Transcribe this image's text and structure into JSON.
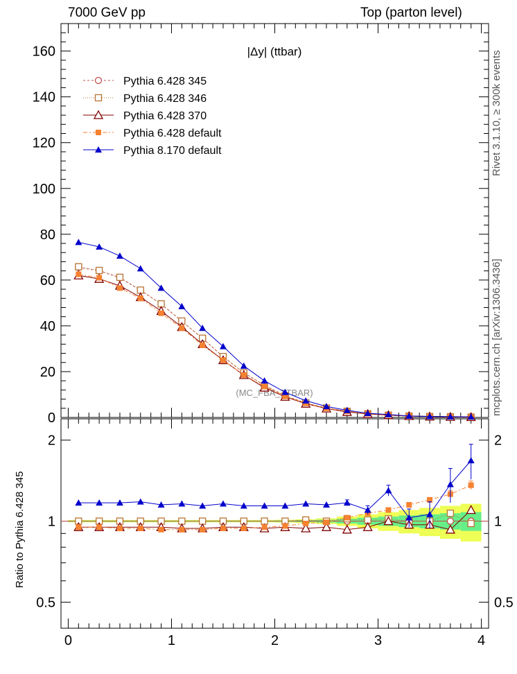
{
  "header": {
    "left": "7000 GeV pp",
    "right": "Top (parton level)"
  },
  "side_labels": {
    "rivet": "Rivet 3.1.10, ≥ 300k events",
    "mcplots": "mcplots.cern.ch [arXiv:1306.3436]"
  },
  "chart_data": [
    {
      "type": "line",
      "title": "|Δy| (ttbar)",
      "watermark": "(MC_FBA_TTBAR)",
      "xlim": [
        -0.07,
        4.07
      ],
      "ylim": [
        0,
        172
      ],
      "yticks": [
        0,
        20,
        40,
        60,
        80,
        100,
        120,
        140,
        160
      ],
      "legend_position": "top-left",
      "x": [
        0.1,
        0.3,
        0.5,
        0.7,
        0.9,
        1.1,
        1.3,
        1.5,
        1.7,
        1.9,
        2.1,
        2.3,
        2.5,
        2.7,
        2.9,
        3.1,
        3.3,
        3.5,
        3.7,
        3.9
      ],
      "series": [
        {
          "name": "Pythia 6.428 345",
          "color": "#c0504d",
          "marker": "circle-open",
          "dash": "3,3",
          "values": [
            65.5,
            64.0,
            61.0,
            55.5,
            49.5,
            42.0,
            34.5,
            26.5,
            19.5,
            14.0,
            9.5,
            6.3,
            4.1,
            2.6,
            1.6,
            1.0,
            0.6,
            0.4,
            0.25,
            0.15
          ]
        },
        {
          "name": "Pythia 6.428 346",
          "color": "#b87333",
          "marker": "square-open",
          "dash": "1,2",
          "values": [
            65.8,
            64.2,
            61.2,
            55.6,
            49.6,
            42.1,
            34.6,
            26.6,
            19.5,
            14.0,
            9.5,
            6.4,
            4.1,
            2.7,
            1.6,
            1.0,
            0.6,
            0.4,
            0.27,
            0.15
          ]
        },
        {
          "name": "Pythia 6.428 370",
          "color": "#800000",
          "marker": "triangle-open",
          "dash": "",
          "values": [
            62.0,
            60.5,
            57.5,
            52.5,
            46.5,
            39.5,
            32.0,
            25.0,
            18.5,
            13.0,
            9.0,
            6.0,
            3.9,
            2.4,
            1.5,
            1.0,
            0.6,
            0.4,
            0.23,
            0.16
          ]
        },
        {
          "name": "Pythia 6.428 default",
          "color": "#f58231",
          "marker": "square-filled",
          "dash": "6,3,2,3",
          "values": [
            62.5,
            61.0,
            56.5,
            52.0,
            45.5,
            39.0,
            31.5,
            25.0,
            18.5,
            13.5,
            9.2,
            6.2,
            4.0,
            2.7,
            1.7,
            1.1,
            0.7,
            0.5,
            0.32,
            0.21
          ]
        },
        {
          "name": "Pythia 8.170 default",
          "color": "#0000cc",
          "marker": "triangle-filled",
          "dash": "",
          "values": [
            76.5,
            74.5,
            70.5,
            65.0,
            56.5,
            48.5,
            39.0,
            31.0,
            22.5,
            16.0,
            11.0,
            7.3,
            4.8,
            3.1,
            1.8,
            1.3,
            0.65,
            0.45,
            0.35,
            0.25
          ]
        }
      ]
    },
    {
      "type": "line",
      "ylabel": "Ratio to Pythia 6.428 345",
      "xlim": [
        -0.07,
        4.07
      ],
      "ylim": [
        0.4,
        2.4
      ],
      "scale": "log",
      "yticks": [
        0.5,
        1,
        2
      ],
      "xticks": [
        0,
        1,
        2,
        3,
        4
      ],
      "x": [
        0.1,
        0.3,
        0.5,
        0.7,
        0.9,
        1.1,
        1.3,
        1.5,
        1.7,
        1.9,
        2.1,
        2.3,
        2.5,
        2.7,
        2.9,
        3.1,
        3.3,
        3.5,
        3.7,
        3.9
      ],
      "band": {
        "inner_color": "#66ee88",
        "outer_color": "#eeff55",
        "inner": [
          0.005,
          0.005,
          0.005,
          0.005,
          0.005,
          0.005,
          0.005,
          0.005,
          0.005,
          0.005,
          0.006,
          0.008,
          0.012,
          0.02,
          0.03,
          0.04,
          0.05,
          0.06,
          0.07,
          0.08
        ],
        "outer": [
          0.01,
          0.01,
          0.01,
          0.01,
          0.01,
          0.01,
          0.01,
          0.01,
          0.01,
          0.01,
          0.012,
          0.016,
          0.024,
          0.04,
          0.06,
          0.08,
          0.1,
          0.12,
          0.14,
          0.16
        ]
      },
      "series": [
        {
          "name": "Pythia 6.428 345",
          "color": "#c0504d",
          "marker": "circle-open",
          "dash": "3,3",
          "values": [
            1,
            1,
            1,
            1,
            1,
            1,
            1,
            1,
            1,
            1,
            1,
            1,
            1,
            1,
            1,
            1,
            1,
            1,
            1,
            1
          ]
        },
        {
          "name": "Pythia 6.428 346",
          "color": "#b87333",
          "marker": "square-open",
          "dash": "1,2",
          "values": [
            1.0,
            1.0,
            1.0,
            1.0,
            1.0,
            1.0,
            1.0,
            1.0,
            1.0,
            1.0,
            1.0,
            1.01,
            1.0,
            1.02,
            1.01,
            1.02,
            1.0,
            1.0,
            1.07,
            0.98
          ]
        },
        {
          "name": "Pythia 6.428 370",
          "color": "#800000",
          "marker": "triangle-open",
          "dash": "",
          "values": [
            0.95,
            0.95,
            0.95,
            0.95,
            0.95,
            0.94,
            0.94,
            0.95,
            0.95,
            0.94,
            0.95,
            0.94,
            0.95,
            0.93,
            0.95,
            1.0,
            0.97,
            0.97,
            0.93,
            1.1
          ]
        },
        {
          "name": "Pythia 6.428 default",
          "color": "#f58231",
          "marker": "square-filled",
          "dash": "6,3,2,3",
          "values": [
            0.95,
            0.95,
            0.94,
            0.94,
            0.93,
            0.93,
            0.93,
            0.94,
            0.94,
            0.95,
            0.96,
            0.98,
            0.99,
            1.03,
            1.07,
            1.1,
            1.15,
            1.2,
            1.26,
            1.36
          ],
          "errors": [
            0,
            0,
            0,
            0,
            0,
            0,
            0,
            0,
            0,
            0,
            0,
            0,
            0,
            0.01,
            0.01,
            0.01,
            0.02,
            0.02,
            0.04,
            0.05
          ]
        },
        {
          "name": "Pythia 8.170 default",
          "color": "#0000cc",
          "marker": "triangle-filled",
          "dash": "",
          "values": [
            1.17,
            1.17,
            1.17,
            1.18,
            1.15,
            1.16,
            1.14,
            1.16,
            1.14,
            1.14,
            1.14,
            1.16,
            1.15,
            1.17,
            1.1,
            1.3,
            1.03,
            1.06,
            1.37,
            1.68
          ],
          "errors": [
            0,
            0,
            0,
            0,
            0,
            0,
            0,
            0,
            0,
            0,
            0,
            0,
            0,
            0.03,
            0.04,
            0.06,
            0.08,
            0.12,
            0.2,
            0.25
          ]
        }
      ]
    }
  ]
}
